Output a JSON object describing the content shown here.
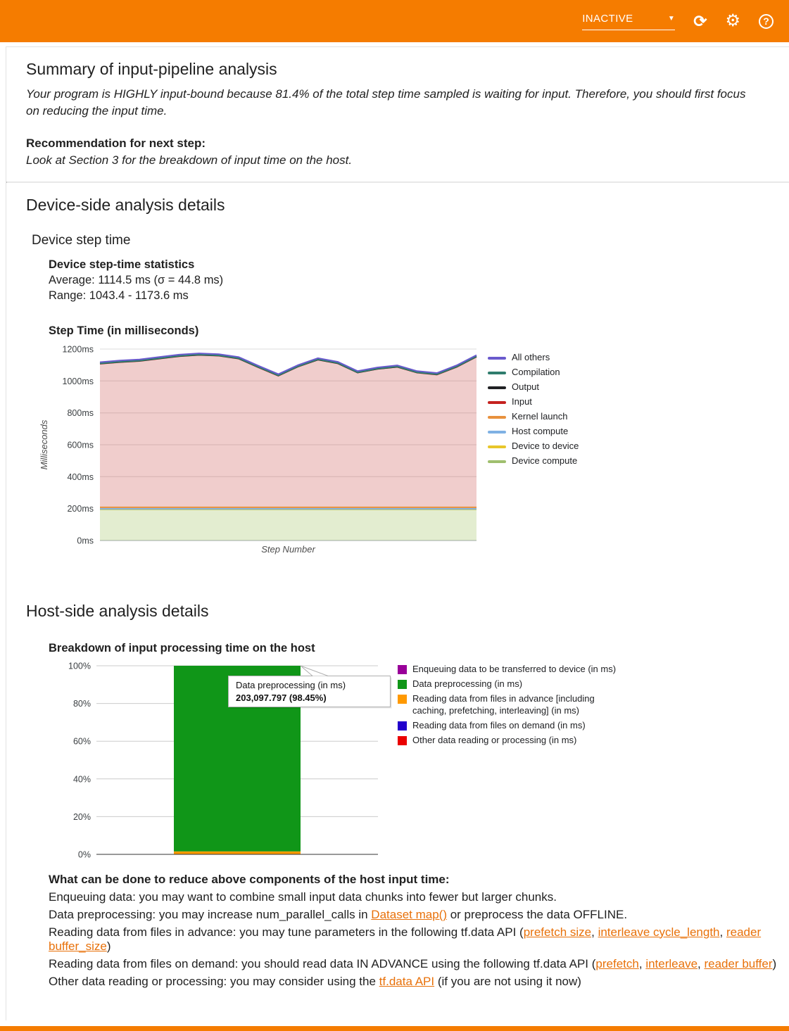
{
  "colors": {
    "brand_orange": "#f57c00",
    "link": "#e8710a"
  },
  "header": {
    "status_label": "INACTIVE",
    "caret": "▼",
    "icons": {
      "refresh": "⟳",
      "settings": "⚙",
      "help": "?"
    }
  },
  "summary": {
    "title": "Summary of input-pipeline analysis",
    "body": "Your program is HIGHLY input-bound because 81.4% of the total step time sampled is waiting for input. Therefore, you should first focus on reducing the input time.",
    "recommendation_label": "Recommendation for next step:",
    "recommendation_body": "Look at Section 3 for the breakdown of input time on the host."
  },
  "device_section": {
    "title": "Device-side analysis details",
    "subtitle": "Device step time",
    "stats_title": "Device step-time statistics",
    "average": "Average: 1114.5 ms (σ = 44.8 ms)",
    "range": "Range: 1043.4 - 1173.6 ms",
    "chart_title": "Step Time (in milliseconds)"
  },
  "host_section": {
    "title": "Host-side analysis details",
    "chart_title": "Breakdown of input processing time on the host"
  },
  "advice": {
    "title": "What can be done to reduce above components of the host input time:",
    "enqueue_line": "Enqueuing data: you may want to combine small input data chunks into fewer but larger chunks.",
    "preprocess": [
      "Data preprocessing: you may increase num_parallel_calls in ",
      "Dataset map()",
      " or preprocess the data OFFLINE."
    ],
    "advance": [
      "Reading data from files in advance: you may tune parameters in the following tf.data API (",
      "prefetch size",
      ", ",
      "interleave cycle_length",
      ", ",
      "reader buffer_size",
      ")"
    ],
    "demand": [
      "Reading data from files on demand: you should read data IN ADVANCE using the following tf.data API (",
      "prefetch",
      ", ",
      "interleave",
      ", ",
      "reader buffer",
      ")"
    ],
    "other": [
      "Other data reading or processing: you may consider using the ",
      "tf.data API",
      " (if you are not using it now)"
    ]
  },
  "chart_data": [
    {
      "type": "area",
      "title": "Step Time (in milliseconds)",
      "xlabel": "Step Number",
      "ylabel": "Milliseconds",
      "ylim": [
        0,
        1200
      ],
      "grid": true,
      "legend_position": "right",
      "yticks": [
        {
          "v": 0,
          "label": "0ms"
        },
        {
          "v": 200,
          "label": "200ms"
        },
        {
          "v": 400,
          "label": "400ms"
        },
        {
          "v": 600,
          "label": "600ms"
        },
        {
          "v": 800,
          "label": "800ms"
        },
        {
          "v": 1000,
          "label": "1000ms"
        },
        {
          "v": 1200,
          "label": "1200ms"
        }
      ],
      "series_stacked_bottom_to_top": true,
      "series": [
        {
          "name": "Device compute",
          "color": "#9fbf6e",
          "fill": "rgba(174,203,120,0.35)",
          "values": [
            195
          ]
        },
        {
          "name": "Device to device",
          "color": "#e8c62a",
          "fill": "rgba(232,198,42,0.30)",
          "values": [
            2
          ]
        },
        {
          "name": "Host compute",
          "color": "#7fb1e3",
          "fill": "rgba(127,177,227,0.30)",
          "values": [
            2
          ]
        },
        {
          "name": "Kernel launch",
          "color": "#e8913d",
          "fill": "rgba(232,145,61,0.35)",
          "values": [
            9
          ]
        },
        {
          "name": "Input",
          "color": "#c5221f",
          "fill": "rgba(197,60,57,0.26)",
          "values": [
            900,
            910,
            917,
            932,
            947,
            955,
            950,
            932,
            877,
            825,
            882,
            925,
            902,
            844,
            867,
            880,
            844,
            832,
            880,
            944
          ]
        },
        {
          "name": "Output",
          "color": "#202124",
          "fill": "rgba(32,33,36,0.25)",
          "values": [
            1
          ]
        },
        {
          "name": "Compilation",
          "color": "#2f7d6d",
          "fill": "rgba(47,125,109,0.30)",
          "values": [
            1
          ]
        },
        {
          "name": "All others",
          "color": "#6a5acd",
          "fill": "rgba(106,90,205,0.30)",
          "values": [
            8
          ]
        }
      ]
    },
    {
      "type": "bar",
      "title": "Breakdown of input processing time on the host",
      "yticks": [
        {
          "v": 0,
          "label": "0%"
        },
        {
          "v": 20,
          "label": "20%"
        },
        {
          "v": 40,
          "label": "40%"
        },
        {
          "v": 60,
          "label": "60%"
        },
        {
          "v": 80,
          "label": "80%"
        },
        {
          "v": 100,
          "label": "100%"
        }
      ],
      "segments_bottom_to_top": [
        {
          "name": "Reading data from files in advance [including caching, prefetching, interleaving] (in ms)",
          "color": "#ff9900",
          "percent": 1.55
        },
        {
          "name": "Data preprocessing (in ms)",
          "color": "#109618",
          "percent": 98.45
        }
      ],
      "legend": [
        {
          "label": "Enqueuing data to be transferred to device (in ms)",
          "color": "#990099"
        },
        {
          "label": "Data preprocessing (in ms)",
          "color": "#109618"
        },
        {
          "label": "Reading data from files in advance [including caching, prefetching, interleaving] (in ms)",
          "color": "#ff9900"
        },
        {
          "label": "Reading data from files on demand (in ms)",
          "color": "#2200cc"
        },
        {
          "label": "Other data reading or processing (in ms)",
          "color": "#ea0000"
        }
      ],
      "tooltip": {
        "title": "Data preprocessing (in ms)",
        "value": "203,097.797 (98.45%)"
      }
    }
  ]
}
